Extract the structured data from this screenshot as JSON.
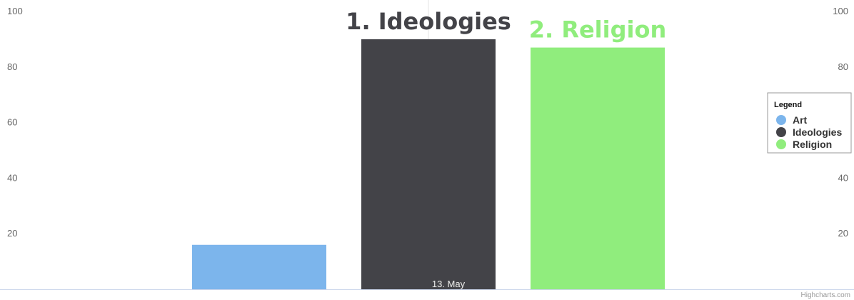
{
  "chart_data": {
    "type": "bar",
    "categories": [
      "13. May"
    ],
    "series": [
      {
        "name": "Art",
        "values": [
          16
        ],
        "color": "#7cb5ec"
      },
      {
        "name": "Ideologies",
        "values": [
          90
        ],
        "color": "#434348",
        "data_label": "1. Ideologies"
      },
      {
        "name": "Religion",
        "values": [
          87
        ],
        "color": "#90ed7d",
        "data_label": "2. Religion"
      }
    ],
    "yticks": [
      20,
      40,
      60,
      80,
      100
    ],
    "ylim": [
      0,
      100
    ],
    "y_axis_top_label": "100",
    "legend": {
      "title": "Legend",
      "placement": "right"
    },
    "grid": false,
    "credits": "Highcharts.com"
  }
}
